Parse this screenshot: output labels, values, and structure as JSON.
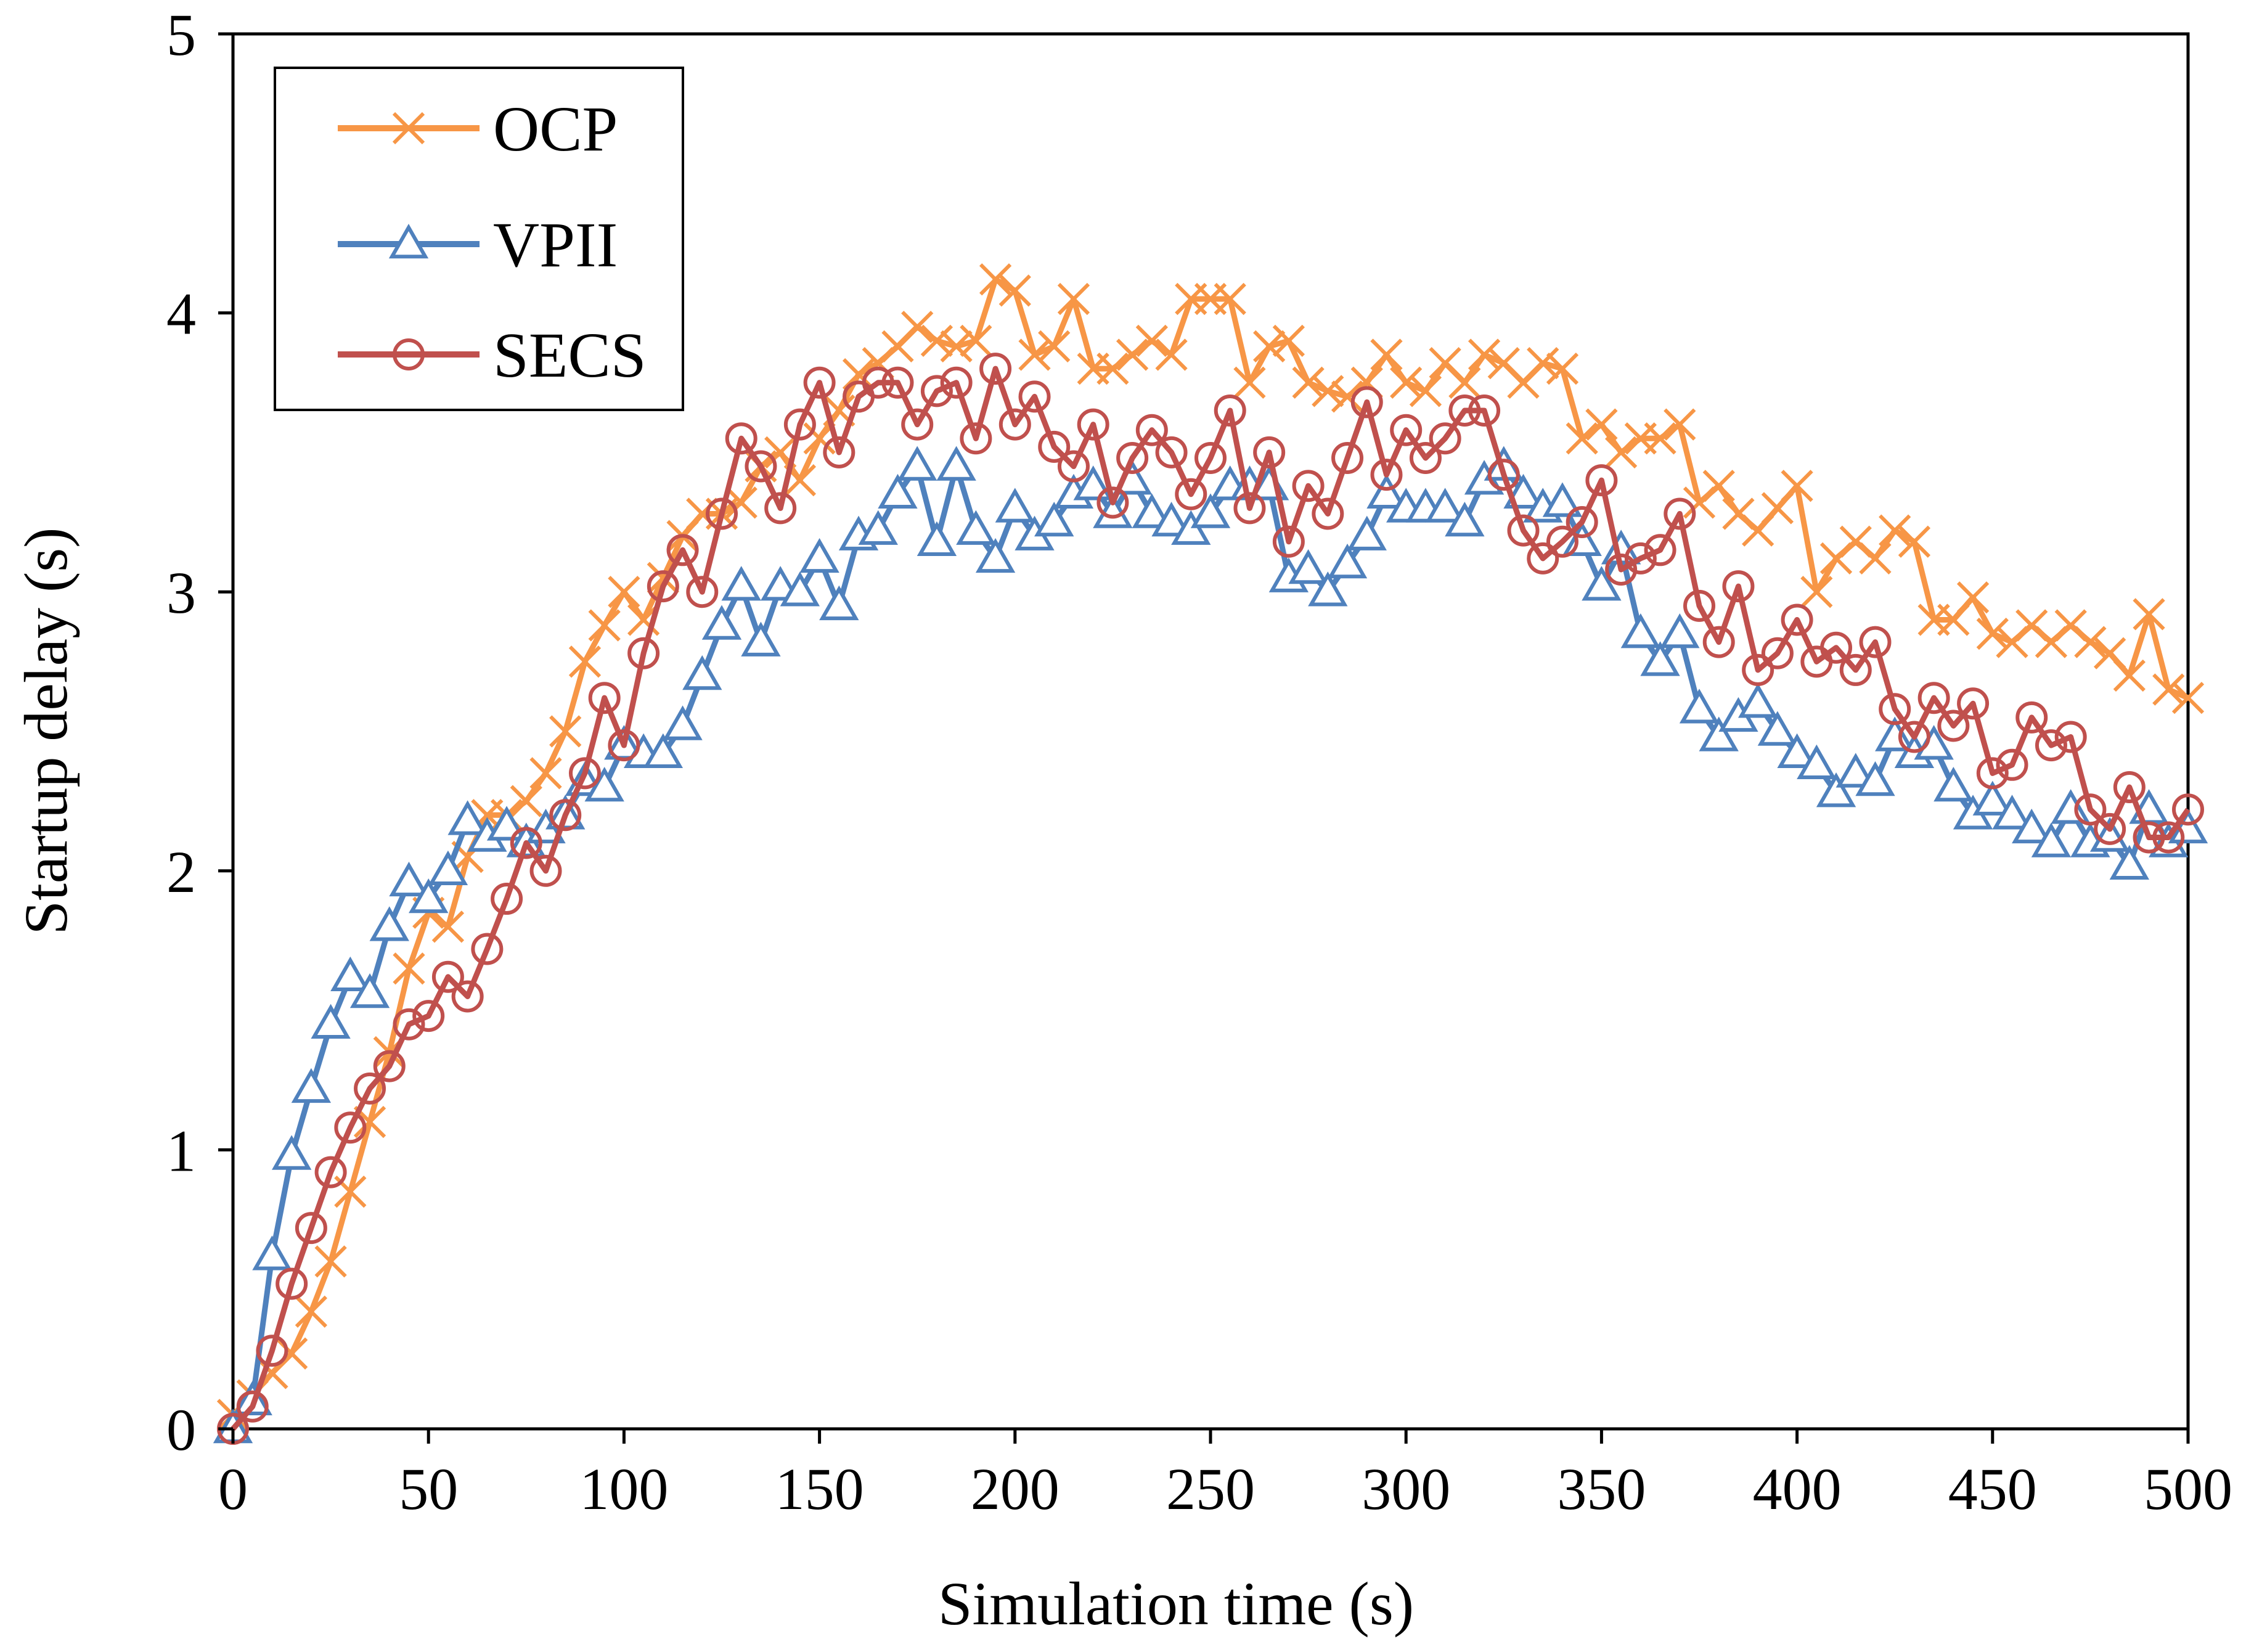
{
  "chart_data": {
    "type": "line",
    "title": "",
    "xlabel": "Simulation time (s)",
    "ylabel": "Startup delay (s)",
    "xlim": [
      0,
      500
    ],
    "ylim": [
      0,
      5
    ],
    "xticks": [
      0,
      50,
      100,
      150,
      200,
      250,
      300,
      350,
      400,
      450,
      500
    ],
    "yticks": [
      0,
      1,
      2,
      3,
      4,
      5
    ],
    "grid": false,
    "legend_position": "top-left",
    "x": [
      0,
      5,
      10,
      15,
      20,
      25,
      30,
      35,
      40,
      45,
      50,
      55,
      60,
      65,
      70,
      75,
      80,
      85,
      90,
      95,
      100,
      105,
      110,
      115,
      120,
      125,
      130,
      135,
      140,
      145,
      150,
      155,
      160,
      165,
      170,
      175,
      180,
      185,
      190,
      195,
      200,
      205,
      210,
      215,
      220,
      225,
      230,
      235,
      240,
      245,
      250,
      255,
      260,
      265,
      270,
      275,
      280,
      285,
      290,
      295,
      300,
      305,
      310,
      315,
      320,
      325,
      330,
      335,
      340,
      345,
      350,
      355,
      360,
      365,
      370,
      375,
      380,
      385,
      390,
      395,
      400,
      405,
      410,
      415,
      420,
      425,
      430,
      435,
      440,
      445,
      450,
      455,
      460,
      465,
      470,
      475,
      480,
      485,
      490,
      495,
      500
    ],
    "series": [
      {
        "name": "OCP",
        "color": "#F79646",
        "marker": "x",
        "values": [
          0.05,
          0.12,
          0.2,
          0.27,
          0.42,
          0.6,
          0.85,
          1.1,
          1.35,
          1.65,
          1.85,
          1.8,
          2.05,
          2.2,
          2.2,
          2.25,
          2.35,
          2.5,
          2.75,
          2.88,
          3.0,
          2.9,
          3.05,
          3.2,
          3.28,
          3.28,
          3.32,
          3.45,
          3.5,
          3.4,
          3.55,
          3.65,
          3.78,
          3.82,
          3.88,
          3.95,
          3.9,
          3.88,
          3.9,
          4.12,
          4.08,
          3.85,
          3.88,
          4.05,
          3.8,
          3.8,
          3.85,
          3.9,
          3.85,
          4.05,
          4.05,
          4.05,
          3.75,
          3.88,
          3.9,
          3.75,
          3.72,
          3.7,
          3.75,
          3.85,
          3.75,
          3.72,
          3.82,
          3.75,
          3.85,
          3.82,
          3.75,
          3.82,
          3.8,
          3.55,
          3.6,
          3.5,
          3.55,
          3.55,
          3.6,
          3.32,
          3.38,
          3.28,
          3.22,
          3.3,
          3.38,
          3.0,
          3.12,
          3.18,
          3.12,
          3.22,
          3.18,
          2.9,
          2.9,
          2.98,
          2.85,
          2.82,
          2.88,
          2.82,
          2.88,
          2.82,
          2.78,
          2.7,
          2.92,
          2.65,
          2.62
        ]
      },
      {
        "name": "VPII",
        "color": "#4F81BD",
        "marker": "triangle",
        "values": [
          0.0,
          0.1,
          0.62,
          0.98,
          1.22,
          1.45,
          1.62,
          1.56,
          1.8,
          1.96,
          1.9,
          2.0,
          2.18,
          2.12,
          2.16,
          2.1,
          2.15,
          2.2,
          2.32,
          2.3,
          2.45,
          2.42,
          2.42,
          2.52,
          2.7,
          2.88,
          3.02,
          2.82,
          3.02,
          3.0,
          3.12,
          2.95,
          3.2,
          3.22,
          3.35,
          3.45,
          3.18,
          3.45,
          3.22,
          3.12,
          3.3,
          3.2,
          3.25,
          3.35,
          3.38,
          3.28,
          3.4,
          3.28,
          3.25,
          3.22,
          3.28,
          3.38,
          3.38,
          3.38,
          3.05,
          3.08,
          3.0,
          3.1,
          3.2,
          3.35,
          3.3,
          3.3,
          3.3,
          3.25,
          3.4,
          3.45,
          3.35,
          3.3,
          3.32,
          3.18,
          3.02,
          3.15,
          2.85,
          2.75,
          2.85,
          2.58,
          2.48,
          2.55,
          2.6,
          2.5,
          2.42,
          2.38,
          2.28,
          2.35,
          2.32,
          2.48,
          2.42,
          2.45,
          2.3,
          2.2,
          2.25,
          2.2,
          2.15,
          2.1,
          2.22,
          2.1,
          2.12,
          2.02,
          2.22,
          2.1,
          2.15
        ]
      },
      {
        "name": "SECS",
        "color": "#C0504D",
        "marker": "circle",
        "values": [
          0.0,
          0.08,
          0.28,
          0.52,
          0.72,
          0.92,
          1.08,
          1.22,
          1.3,
          1.45,
          1.48,
          1.62,
          1.55,
          1.72,
          1.9,
          2.1,
          2.0,
          2.2,
          2.35,
          2.62,
          2.45,
          2.78,
          3.02,
          3.15,
          3.0,
          3.28,
          3.55,
          3.45,
          3.3,
          3.6,
          3.75,
          3.5,
          3.7,
          3.75,
          3.75,
          3.6,
          3.72,
          3.75,
          3.55,
          3.8,
          3.6,
          3.7,
          3.52,
          3.45,
          3.6,
          3.32,
          3.48,
          3.58,
          3.5,
          3.35,
          3.48,
          3.65,
          3.3,
          3.5,
          3.18,
          3.38,
          3.28,
          3.48,
          3.68,
          3.42,
          3.58,
          3.48,
          3.55,
          3.65,
          3.65,
          3.42,
          3.22,
          3.12,
          3.18,
          3.25,
          3.4,
          3.08,
          3.12,
          3.15,
          3.28,
          2.95,
          2.82,
          3.02,
          2.72,
          2.78,
          2.9,
          2.75,
          2.8,
          2.72,
          2.82,
          2.58,
          2.48,
          2.62,
          2.52,
          2.6,
          2.35,
          2.38,
          2.55,
          2.45,
          2.48,
          2.22,
          2.15,
          2.3,
          2.12,
          2.12,
          2.22
        ]
      }
    ]
  }
}
